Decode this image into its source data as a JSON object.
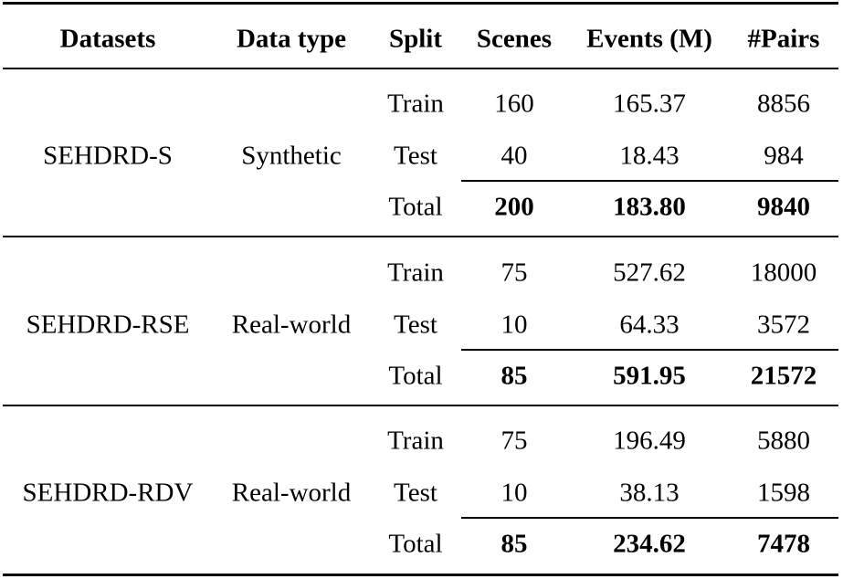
{
  "table": {
    "header": [
      "Datasets",
      "Data type",
      "Split",
      "Scenes",
      "Events (M)",
      "#Pairs"
    ],
    "groups": [
      {
        "dataset": "SEHDRD-S",
        "data_type": "Synthetic",
        "rows": [
          [
            "Train",
            "160",
            "165.37",
            "8856"
          ],
          [
            "Test",
            "40",
            "18.43",
            "984"
          ],
          [
            "Total",
            "200",
            "183.80",
            "9840"
          ]
        ]
      },
      {
        "dataset": "SEHDRD-RSE",
        "data_type": "Real-world",
        "rows": [
          [
            "Train",
            "75",
            "527.62",
            "18000"
          ],
          [
            "Test",
            "10",
            "64.33",
            "3572"
          ],
          [
            "Total",
            "85",
            "591.95",
            "21572"
          ]
        ]
      },
      {
        "dataset": "SEHDRD-RDV",
        "data_type": "Real-world",
        "rows": [
          [
            "Train",
            "75",
            "196.49",
            "5880"
          ],
          [
            "Test",
            "10",
            "38.13",
            "1598"
          ],
          [
            "Total",
            "85",
            "234.62",
            "7478"
          ]
        ]
      }
    ]
  }
}
